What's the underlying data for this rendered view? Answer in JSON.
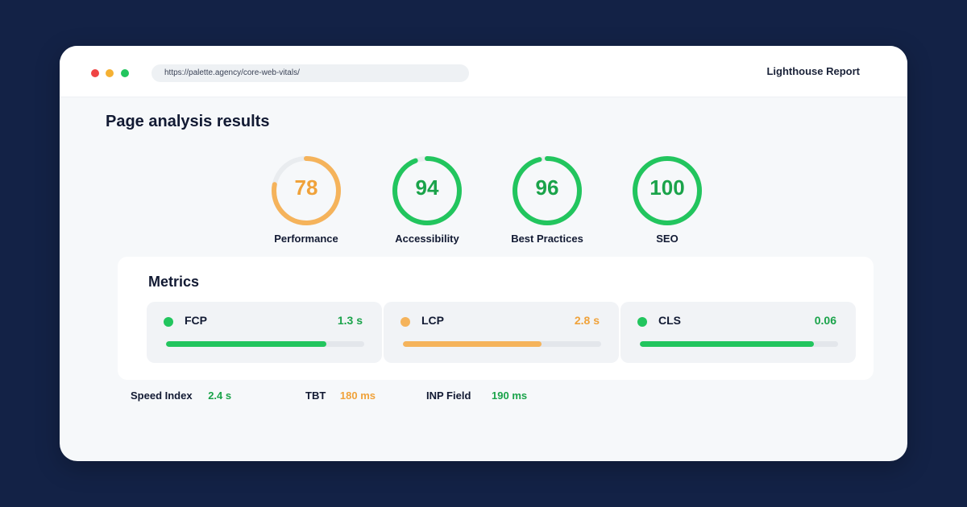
{
  "browser": {
    "url": "https://palette.agency/core-web-vitals/",
    "report_title": "Lighthouse Report"
  },
  "page_title": "Page analysis results",
  "colors": {
    "good": "#22c55e",
    "good_text": "#1aa34a",
    "warn": "#f5b35b",
    "warn_text": "#f0a23a",
    "track": "#e9ecef"
  },
  "scores": [
    {
      "label": "Performance",
      "value": "78",
      "percent": 78,
      "status": "warn"
    },
    {
      "label": "Accessibility",
      "value": "94",
      "percent": 94,
      "status": "good"
    },
    {
      "label": "Best Practices",
      "value": "96",
      "percent": 96,
      "status": "good"
    },
    {
      "label": "SEO",
      "value": "100",
      "percent": 100,
      "status": "good"
    }
  ],
  "metrics": {
    "title": "Metrics",
    "items": [
      {
        "name": "FCP",
        "value": "1.3 s",
        "progress": 0.81,
        "status": "good"
      },
      {
        "name": "LCP",
        "value": "2.8 s",
        "progress": 0.7,
        "status": "warn"
      },
      {
        "name": "CLS",
        "value": "0.06",
        "progress": 0.88,
        "status": "good"
      }
    ]
  },
  "extra_stats": [
    {
      "label": "Speed Index",
      "value": "2.4 s",
      "status": "good"
    },
    {
      "label": "TBT",
      "value": "180 ms",
      "status": "warn"
    },
    {
      "label": "INP Field",
      "value": "190 ms",
      "status": "good"
    }
  ]
}
